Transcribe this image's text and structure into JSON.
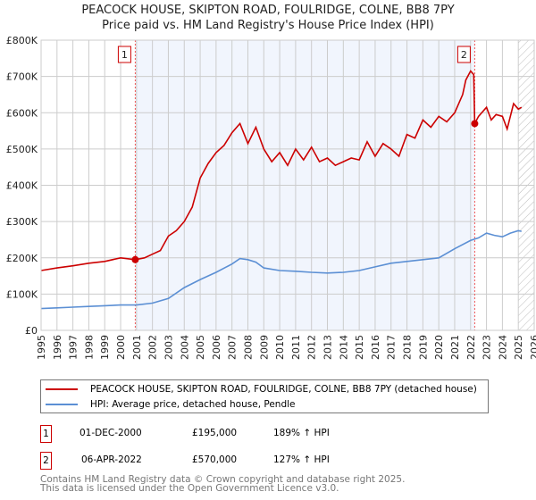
{
  "chart_data": {
    "type": "line",
    "title": "PEACOCK HOUSE, SKIPTON ROAD, FOULRIDGE, COLNE, BB8 7PY",
    "subtitle": "Price paid vs. HM Land Registry's House Price Index (HPI)",
    "xlim": [
      1995,
      2026
    ],
    "ylim": [
      0,
      800000
    ],
    "y_ticks": [
      {
        "v": 0,
        "label": "£0"
      },
      {
        "v": 100000,
        "label": "£100K"
      },
      {
        "v": 200000,
        "label": "£200K"
      },
      {
        "v": 300000,
        "label": "£300K"
      },
      {
        "v": 400000,
        "label": "£400K"
      },
      {
        "v": 500000,
        "label": "£500K"
      },
      {
        "v": 600000,
        "label": "£600K"
      },
      {
        "v": 700000,
        "label": "£700K"
      },
      {
        "v": 800000,
        "label": "£800K"
      }
    ],
    "x_ticks": [
      1995,
      1996,
      1997,
      1998,
      1999,
      2000,
      2001,
      2002,
      2003,
      2004,
      2005,
      2006,
      2007,
      2008,
      2009,
      2010,
      2011,
      2012,
      2013,
      2014,
      2015,
      2016,
      2017,
      2018,
      2019,
      2020,
      2021,
      2022,
      2023,
      2024,
      2025,
      2026
    ],
    "series": [
      {
        "name": "PEACOCK HOUSE, SKIPTON ROAD, FOULRIDGE, COLNE, BB8 7PY (detached house)",
        "color": "#cc0000",
        "x": [
          1995,
          1996,
          1997,
          1998,
          1999,
          2000,
          2000.92,
          2001.5,
          2002,
          2002.5,
          2003,
          2003.5,
          2004,
          2004.5,
          2005,
          2005.5,
          2006,
          2006.5,
          2007,
          2007.5,
          2008,
          2008.5,
          2009,
          2009.5,
          2010,
          2010.5,
          2011,
          2011.5,
          2012,
          2012.5,
          2013,
          2013.5,
          2014,
          2014.5,
          2015,
          2015.5,
          2016,
          2016.5,
          2017,
          2017.5,
          2018,
          2018.5,
          2019,
          2019.5,
          2020,
          2020.5,
          2021,
          2021.5,
          2021.7,
          2022,
          2022.2,
          2022.26,
          2022.5,
          2023,
          2023.3,
          2023.6,
          2024,
          2024.3,
          2024.7,
          2025,
          2025.2
        ],
        "y": [
          165000,
          172000,
          178000,
          185000,
          190000,
          200000,
          195000,
          200000,
          210000,
          220000,
          260000,
          275000,
          300000,
          340000,
          420000,
          460000,
          490000,
          510000,
          545000,
          570000,
          515000,
          560000,
          500000,
          465000,
          490000,
          455000,
          500000,
          470000,
          505000,
          465000,
          475000,
          455000,
          465000,
          475000,
          470000,
          520000,
          480000,
          515000,
          500000,
          480000,
          540000,
          530000,
          580000,
          560000,
          590000,
          575000,
          600000,
          650000,
          690000,
          715000,
          705000,
          570000,
          590000,
          615000,
          580000,
          595000,
          590000,
          555000,
          625000,
          610000,
          615000
        ]
      },
      {
        "name": "HPI: Average price, detached house, Pendle",
        "color": "#5b8fd4",
        "x": [
          1995,
          1996,
          1997,
          1998,
          1999,
          2000,
          2001,
          2002,
          2003,
          2004,
          2005,
          2006,
          2007,
          2007.5,
          2008,
          2008.5,
          2009,
          2010,
          2011,
          2012,
          2013,
          2014,
          2015,
          2016,
          2017,
          2018,
          2019,
          2020,
          2021,
          2022,
          2022.5,
          2023,
          2023.5,
          2024,
          2024.5,
          2025,
          2025.2
        ],
        "y": [
          60000,
          62000,
          64000,
          66000,
          68000,
          70000,
          70000,
          75000,
          88000,
          118000,
          140000,
          160000,
          183000,
          198000,
          195000,
          188000,
          172000,
          165000,
          163000,
          160000,
          158000,
          160000,
          165000,
          175000,
          185000,
          190000,
          195000,
          200000,
          225000,
          248000,
          255000,
          268000,
          262000,
          258000,
          268000,
          275000,
          273000
        ]
      }
    ],
    "sales": [
      {
        "n": "1",
        "x": 2000.92,
        "y": 195000
      },
      {
        "n": "2",
        "x": 2022.26,
        "y": 570000
      }
    ],
    "forecast_from": 2025.0
  },
  "legend": [
    "PEACOCK HOUSE, SKIPTON ROAD, FOULRIDGE, COLNE, BB8 7PY (detached house)",
    "HPI: Average price, detached house, Pendle"
  ],
  "table": [
    {
      "n": "1",
      "date": "01-DEC-2000",
      "price": "£195,000",
      "hpi": "189% ↑ HPI"
    },
    {
      "n": "2",
      "date": "06-APR-2022",
      "price": "£570,000",
      "hpi": "127% ↑ HPI"
    }
  ],
  "footer": [
    "Contains HM Land Registry data © Crown copyright and database right 2025.",
    "This data is licensed under the Open Government Licence v3.0."
  ]
}
